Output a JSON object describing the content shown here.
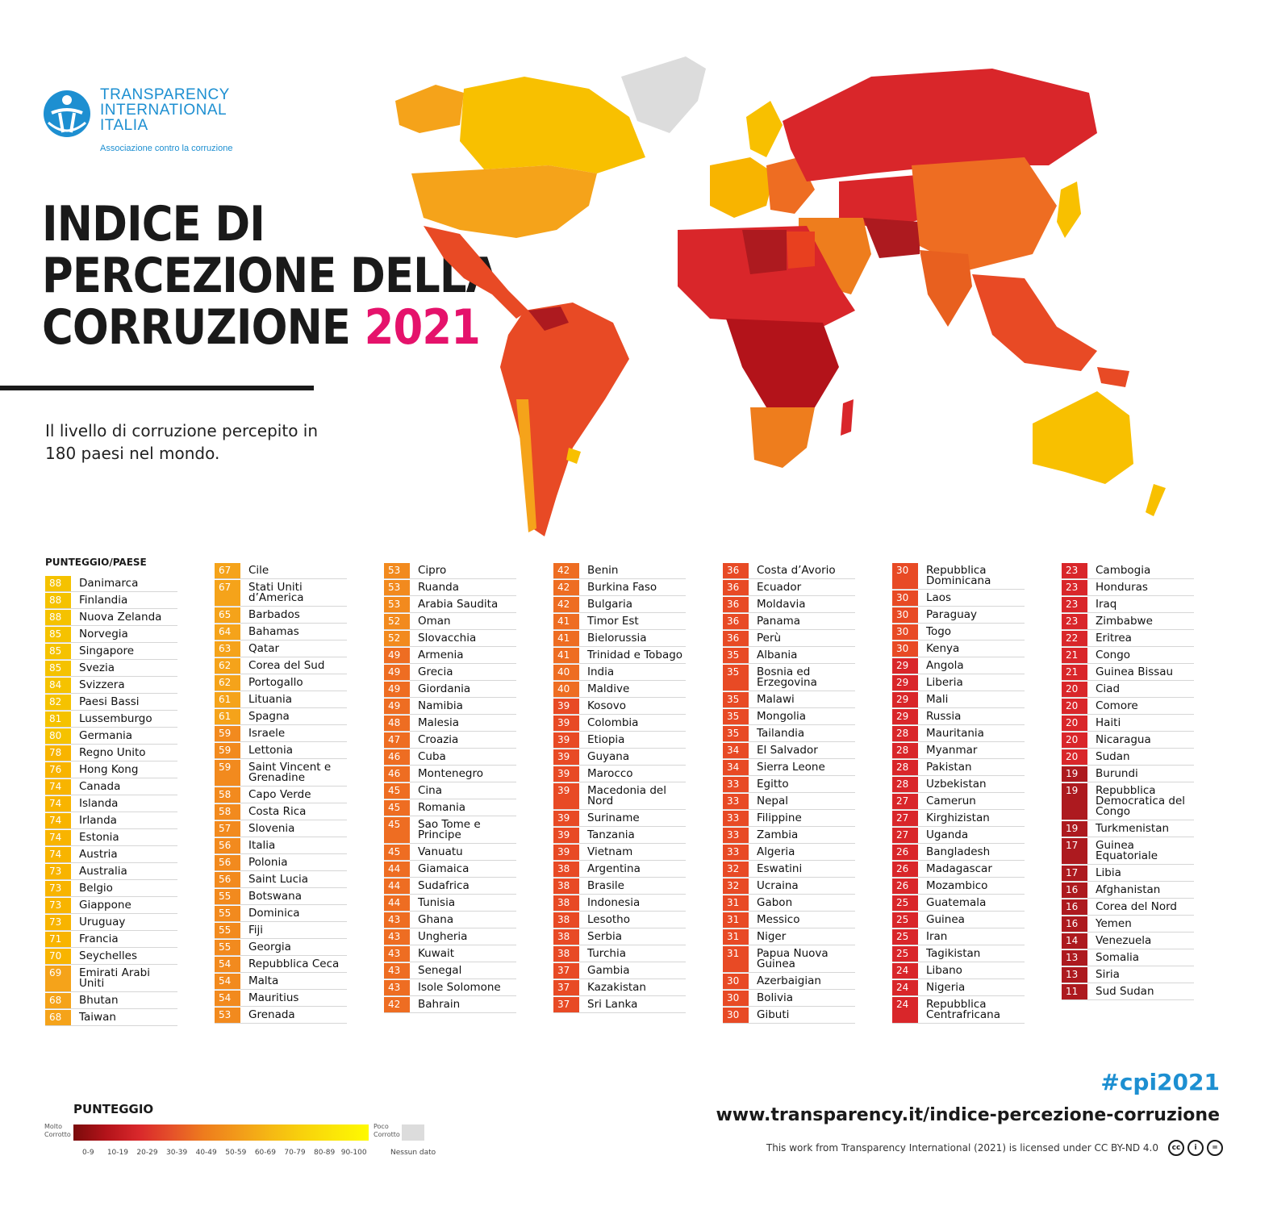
{
  "logo": {
    "lines": [
      "TRANSPARENCY",
      "INTERNATIONAL",
      "ITALIA"
    ],
    "tagline": "Associazione contro la corruzione"
  },
  "title": {
    "line1": "INDICE DI",
    "line2": "PERCEZIONE DELLA",
    "line3": "CORRUZIONE",
    "year": "2021"
  },
  "subtitle": "Il livello di corruzione percepito in 180 paesi nel mondo.",
  "ranking_header": "PUNTEGGIO/PAESE",
  "ranking": [
    {
      "s": 88,
      "c": "Danimarca"
    },
    {
      "s": 88,
      "c": "Finlandia"
    },
    {
      "s": 88,
      "c": "Nuova Zelanda"
    },
    {
      "s": 85,
      "c": "Norvegia"
    },
    {
      "s": 85,
      "c": "Singapore"
    },
    {
      "s": 85,
      "c": "Svezia"
    },
    {
      "s": 84,
      "c": "Svizzera"
    },
    {
      "s": 82,
      "c": "Paesi Bassi"
    },
    {
      "s": 81,
      "c": "Lussemburgo"
    },
    {
      "s": 80,
      "c": "Germania"
    },
    {
      "s": 78,
      "c": "Regno Unito"
    },
    {
      "s": 76,
      "c": "Hong Kong"
    },
    {
      "s": 74,
      "c": "Canada"
    },
    {
      "s": 74,
      "c": "Islanda"
    },
    {
      "s": 74,
      "c": "Irlanda"
    },
    {
      "s": 74,
      "c": "Estonia"
    },
    {
      "s": 74,
      "c": "Austria"
    },
    {
      "s": 73,
      "c": "Australia"
    },
    {
      "s": 73,
      "c": "Belgio"
    },
    {
      "s": 73,
      "c": "Giappone"
    },
    {
      "s": 73,
      "c": "Uruguay"
    },
    {
      "s": 71,
      "c": "Francia"
    },
    {
      "s": 70,
      "c": "Seychelles"
    },
    {
      "s": 69,
      "c": "Emirati Arabi Uniti"
    },
    {
      "s": 68,
      "c": "Bhutan"
    },
    {
      "s": 68,
      "c": "Taiwan"
    },
    {
      "s": 67,
      "c": "Cile"
    },
    {
      "s": 67,
      "c": "Stati Uniti d’America"
    },
    {
      "s": 65,
      "c": "Barbados"
    },
    {
      "s": 64,
      "c": "Bahamas"
    },
    {
      "s": 63,
      "c": "Qatar"
    },
    {
      "s": 62,
      "c": "Corea del Sud"
    },
    {
      "s": 62,
      "c": "Portogallo"
    },
    {
      "s": 61,
      "c": "Lituania"
    },
    {
      "s": 61,
      "c": "Spagna"
    },
    {
      "s": 59,
      "c": "Israele"
    },
    {
      "s": 59,
      "c": "Lettonia"
    },
    {
      "s": 59,
      "c": "Saint Vincent e Grenadine"
    },
    {
      "s": 58,
      "c": "Capo Verde"
    },
    {
      "s": 58,
      "c": "Costa Rica"
    },
    {
      "s": 57,
      "c": "Slovenia"
    },
    {
      "s": 56,
      "c": "Italia"
    },
    {
      "s": 56,
      "c": "Polonia"
    },
    {
      "s": 56,
      "c": "Saint Lucia"
    },
    {
      "s": 55,
      "c": "Botswana"
    },
    {
      "s": 55,
      "c": "Dominica"
    },
    {
      "s": 55,
      "c": "Fiji"
    },
    {
      "s": 55,
      "c": "Georgia"
    },
    {
      "s": 54,
      "c": "Repubblica Ceca"
    },
    {
      "s": 54,
      "c": "Malta"
    },
    {
      "s": 54,
      "c": "Mauritius"
    },
    {
      "s": 53,
      "c": "Grenada"
    },
    {
      "s": 53,
      "c": "Cipro"
    },
    {
      "s": 53,
      "c": "Ruanda"
    },
    {
      "s": 53,
      "c": "Arabia Saudita"
    },
    {
      "s": 52,
      "c": "Oman"
    },
    {
      "s": 52,
      "c": "Slovacchia"
    },
    {
      "s": 49,
      "c": "Armenia"
    },
    {
      "s": 49,
      "c": "Grecia"
    },
    {
      "s": 49,
      "c": "Giordania"
    },
    {
      "s": 49,
      "c": "Namibia"
    },
    {
      "s": 48,
      "c": "Malesia"
    },
    {
      "s": 47,
      "c": "Croazia"
    },
    {
      "s": 46,
      "c": "Cuba"
    },
    {
      "s": 46,
      "c": "Montenegro"
    },
    {
      "s": 45,
      "c": "Cina"
    },
    {
      "s": 45,
      "c": "Romania"
    },
    {
      "s": 45,
      "c": "Sao Tome e Principe"
    },
    {
      "s": 45,
      "c": "Vanuatu"
    },
    {
      "s": 44,
      "c": "Giamaica"
    },
    {
      "s": 44,
      "c": "Sudafrica"
    },
    {
      "s": 44,
      "c": "Tunisia"
    },
    {
      "s": 43,
      "c": "Ghana"
    },
    {
      "s": 43,
      "c": "Ungheria"
    },
    {
      "s": 43,
      "c": "Kuwait"
    },
    {
      "s": 43,
      "c": "Senegal"
    },
    {
      "s": 43,
      "c": "Isole Solomone"
    },
    {
      "s": 42,
      "c": "Bahrain"
    },
    {
      "s": 42,
      "c": "Benin"
    },
    {
      "s": 42,
      "c": "Burkina Faso"
    },
    {
      "s": 42,
      "c": "Bulgaria"
    },
    {
      "s": 41,
      "c": "Timor Est"
    },
    {
      "s": 41,
      "c": "Bielorussia"
    },
    {
      "s": 41,
      "c": "Trinidad e Tobago"
    },
    {
      "s": 40,
      "c": "India"
    },
    {
      "s": 40,
      "c": "Maldive"
    },
    {
      "s": 39,
      "c": "Kosovo"
    },
    {
      "s": 39,
      "c": "Colombia"
    },
    {
      "s": 39,
      "c": "Etiopia"
    },
    {
      "s": 39,
      "c": "Guyana"
    },
    {
      "s": 39,
      "c": "Marocco"
    },
    {
      "s": 39,
      "c": "Macedonia del Nord"
    },
    {
      "s": 39,
      "c": "Suriname"
    },
    {
      "s": 39,
      "c": "Tanzania"
    },
    {
      "s": 39,
      "c": "Vietnam"
    },
    {
      "s": 38,
      "c": "Argentina"
    },
    {
      "s": 38,
      "c": "Brasile"
    },
    {
      "s": 38,
      "c": "Indonesia"
    },
    {
      "s": 38,
      "c": "Lesotho"
    },
    {
      "s": 38,
      "c": "Serbia"
    },
    {
      "s": 38,
      "c": "Turchia"
    },
    {
      "s": 37,
      "c": "Gambia"
    },
    {
      "s": 37,
      "c": "Kazakistan"
    },
    {
      "s": 37,
      "c": "Sri Lanka"
    },
    {
      "s": 36,
      "c": "Costa d’Avorio"
    },
    {
      "s": 36,
      "c": "Ecuador"
    },
    {
      "s": 36,
      "c": "Moldavia"
    },
    {
      "s": 36,
      "c": "Panama"
    },
    {
      "s": 36,
      "c": "Perù"
    },
    {
      "s": 35,
      "c": "Albania"
    },
    {
      "s": 35,
      "c": "Bosnia ed Erzegovina"
    },
    {
      "s": 35,
      "c": "Malawi"
    },
    {
      "s": 35,
      "c": "Mongolia"
    },
    {
      "s": 35,
      "c": "Tailandia"
    },
    {
      "s": 34,
      "c": "El Salvador"
    },
    {
      "s": 34,
      "c": "Sierra Leone"
    },
    {
      "s": 33,
      "c": "Egitto"
    },
    {
      "s": 33,
      "c": "Nepal"
    },
    {
      "s": 33,
      "c": "Filippine"
    },
    {
      "s": 33,
      "c": "Zambia"
    },
    {
      "s": 33,
      "c": "Algeria"
    },
    {
      "s": 32,
      "c": "Eswatini"
    },
    {
      "s": 32,
      "c": "Ucraina"
    },
    {
      "s": 31,
      "c": "Gabon"
    },
    {
      "s": 31,
      "c": "Messico"
    },
    {
      "s": 31,
      "c": "Niger"
    },
    {
      "s": 31,
      "c": "Papua Nuova Guinea"
    },
    {
      "s": 30,
      "c": "Azerbaigian"
    },
    {
      "s": 30,
      "c": "Bolivia"
    },
    {
      "s": 30,
      "c": "Gibuti"
    },
    {
      "s": 30,
      "c": "Repubblica Dominicana"
    },
    {
      "s": 30,
      "c": "Laos"
    },
    {
      "s": 30,
      "c": "Paraguay"
    },
    {
      "s": 30,
      "c": "Togo"
    },
    {
      "s": 30,
      "c": "Kenya"
    },
    {
      "s": 29,
      "c": "Angola"
    },
    {
      "s": 29,
      "c": "Liberia"
    },
    {
      "s": 29,
      "c": "Mali"
    },
    {
      "s": 29,
      "c": "Russia"
    },
    {
      "s": 28,
      "c": "Mauritania"
    },
    {
      "s": 28,
      "c": "Myanmar"
    },
    {
      "s": 28,
      "c": "Pakistan"
    },
    {
      "s": 28,
      "c": "Uzbekistan"
    },
    {
      "s": 27,
      "c": "Camerun"
    },
    {
      "s": 27,
      "c": "Kirghizistan"
    },
    {
      "s": 27,
      "c": "Uganda"
    },
    {
      "s": 26,
      "c": "Bangladesh"
    },
    {
      "s": 26,
      "c": "Madagascar"
    },
    {
      "s": 26,
      "c": "Mozambico"
    },
    {
      "s": 25,
      "c": "Guatemala"
    },
    {
      "s": 25,
      "c": "Guinea"
    },
    {
      "s": 25,
      "c": "Iran"
    },
    {
      "s": 25,
      "c": "Tagikistan"
    },
    {
      "s": 24,
      "c": "Libano"
    },
    {
      "s": 24,
      "c": "Nigeria"
    },
    {
      "s": 24,
      "c": "Repubblica Centrafricana"
    },
    {
      "s": 23,
      "c": "Cambogia"
    },
    {
      "s": 23,
      "c": "Honduras"
    },
    {
      "s": 23,
      "c": "Iraq"
    },
    {
      "s": 23,
      "c": "Zimbabwe"
    },
    {
      "s": 22,
      "c": "Eritrea"
    },
    {
      "s": 21,
      "c": "Congo"
    },
    {
      "s": 21,
      "c": "Guinea Bissau"
    },
    {
      "s": 20,
      "c": "Ciad"
    },
    {
      "s": 20,
      "c": "Comore"
    },
    {
      "s": 20,
      "c": "Haiti"
    },
    {
      "s": 20,
      "c": "Nicaragua"
    },
    {
      "s": 20,
      "c": "Sudan"
    },
    {
      "s": 19,
      "c": "Burundi"
    },
    {
      "s": 19,
      "c": "Repubblica Democratica del Congo"
    },
    {
      "s": 19,
      "c": "Turkmenistan"
    },
    {
      "s": 17,
      "c": "Guinea Equatoriale"
    },
    {
      "s": 17,
      "c": "Libia"
    },
    {
      "s": 16,
      "c": "Afghanistan"
    },
    {
      "s": 16,
      "c": "Corea del Nord"
    },
    {
      "s": 16,
      "c": "Yemen"
    },
    {
      "s": 14,
      "c": "Venezuela"
    },
    {
      "s": 13,
      "c": "Somalia"
    },
    {
      "s": 13,
      "c": "Siria"
    },
    {
      "s": 11,
      "c": "Sud Sudan"
    }
  ],
  "score_colors": {
    "80-89": "#f5c200",
    "70-79": "#f8b400",
    "60-69": "#f5a31a",
    "50-59": "#f28a1e",
    "40-49": "#ee6d22",
    "30-39": "#e84a25",
    "20-29": "#d9262a",
    "10-19": "#ad1a1f",
    "0-9": "#7a0b0b"
  },
  "legend": {
    "title": "PUNTEGGIO",
    "low_label": "Molto Corrotto",
    "high_label": "Poco Corrotto",
    "ticks": [
      "0-9",
      "10-19",
      "20-29",
      "30-39",
      "40-49",
      "50-59",
      "60-69",
      "70-79",
      "80-89",
      "90-100"
    ],
    "no_data_label": "Nessun dato",
    "no_data_color": "#dcdcdc"
  },
  "footer": {
    "hashtag": "#cpi2021",
    "url": "www.transparency.it/indice-percezione-corruzione",
    "license": "This work from Transparency International (2021) is licensed under CC BY-ND 4.0"
  }
}
